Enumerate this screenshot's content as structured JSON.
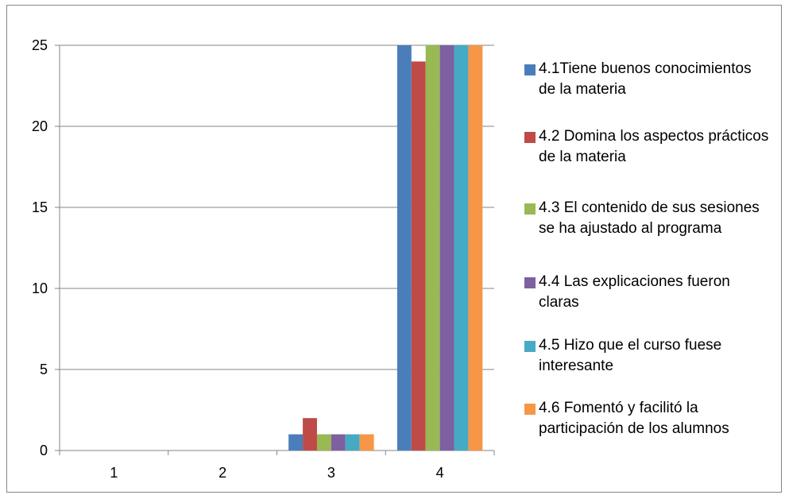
{
  "chart_data": {
    "type": "bar",
    "categories": [
      "1",
      "2",
      "3",
      "4"
    ],
    "ylim": [
      0,
      25
    ],
    "yticks": [
      0,
      5,
      10,
      15,
      20,
      25
    ],
    "grid": true,
    "legend_position": "right",
    "series": [
      {
        "name": "4.1Tiene buenos conocimientos de la materia",
        "color": "#4a7ebb",
        "values": [
          0,
          0,
          1,
          25
        ]
      },
      {
        "name": "4.2 Domina los aspectos prácticos de la materia",
        "color": "#be4b48",
        "values": [
          0,
          0,
          2,
          24
        ]
      },
      {
        "name": "4.3 El contenido de sus sesiones se ha ajustado al programa",
        "color": "#98b954",
        "values": [
          0,
          0,
          1,
          25
        ]
      },
      {
        "name": "4.4 Las explicaciones fueron claras",
        "color": "#7d60a0",
        "values": [
          0,
          0,
          1,
          25
        ]
      },
      {
        "name": "4.5 Hizo que el curso fuese interesante",
        "color": "#46aac5",
        "values": [
          0,
          0,
          1,
          25
        ]
      },
      {
        "name": "4.6 Fomentó y facilitó la participación de los alumnos",
        "color": "#f79646",
        "values": [
          0,
          0,
          1,
          25
        ]
      }
    ]
  }
}
